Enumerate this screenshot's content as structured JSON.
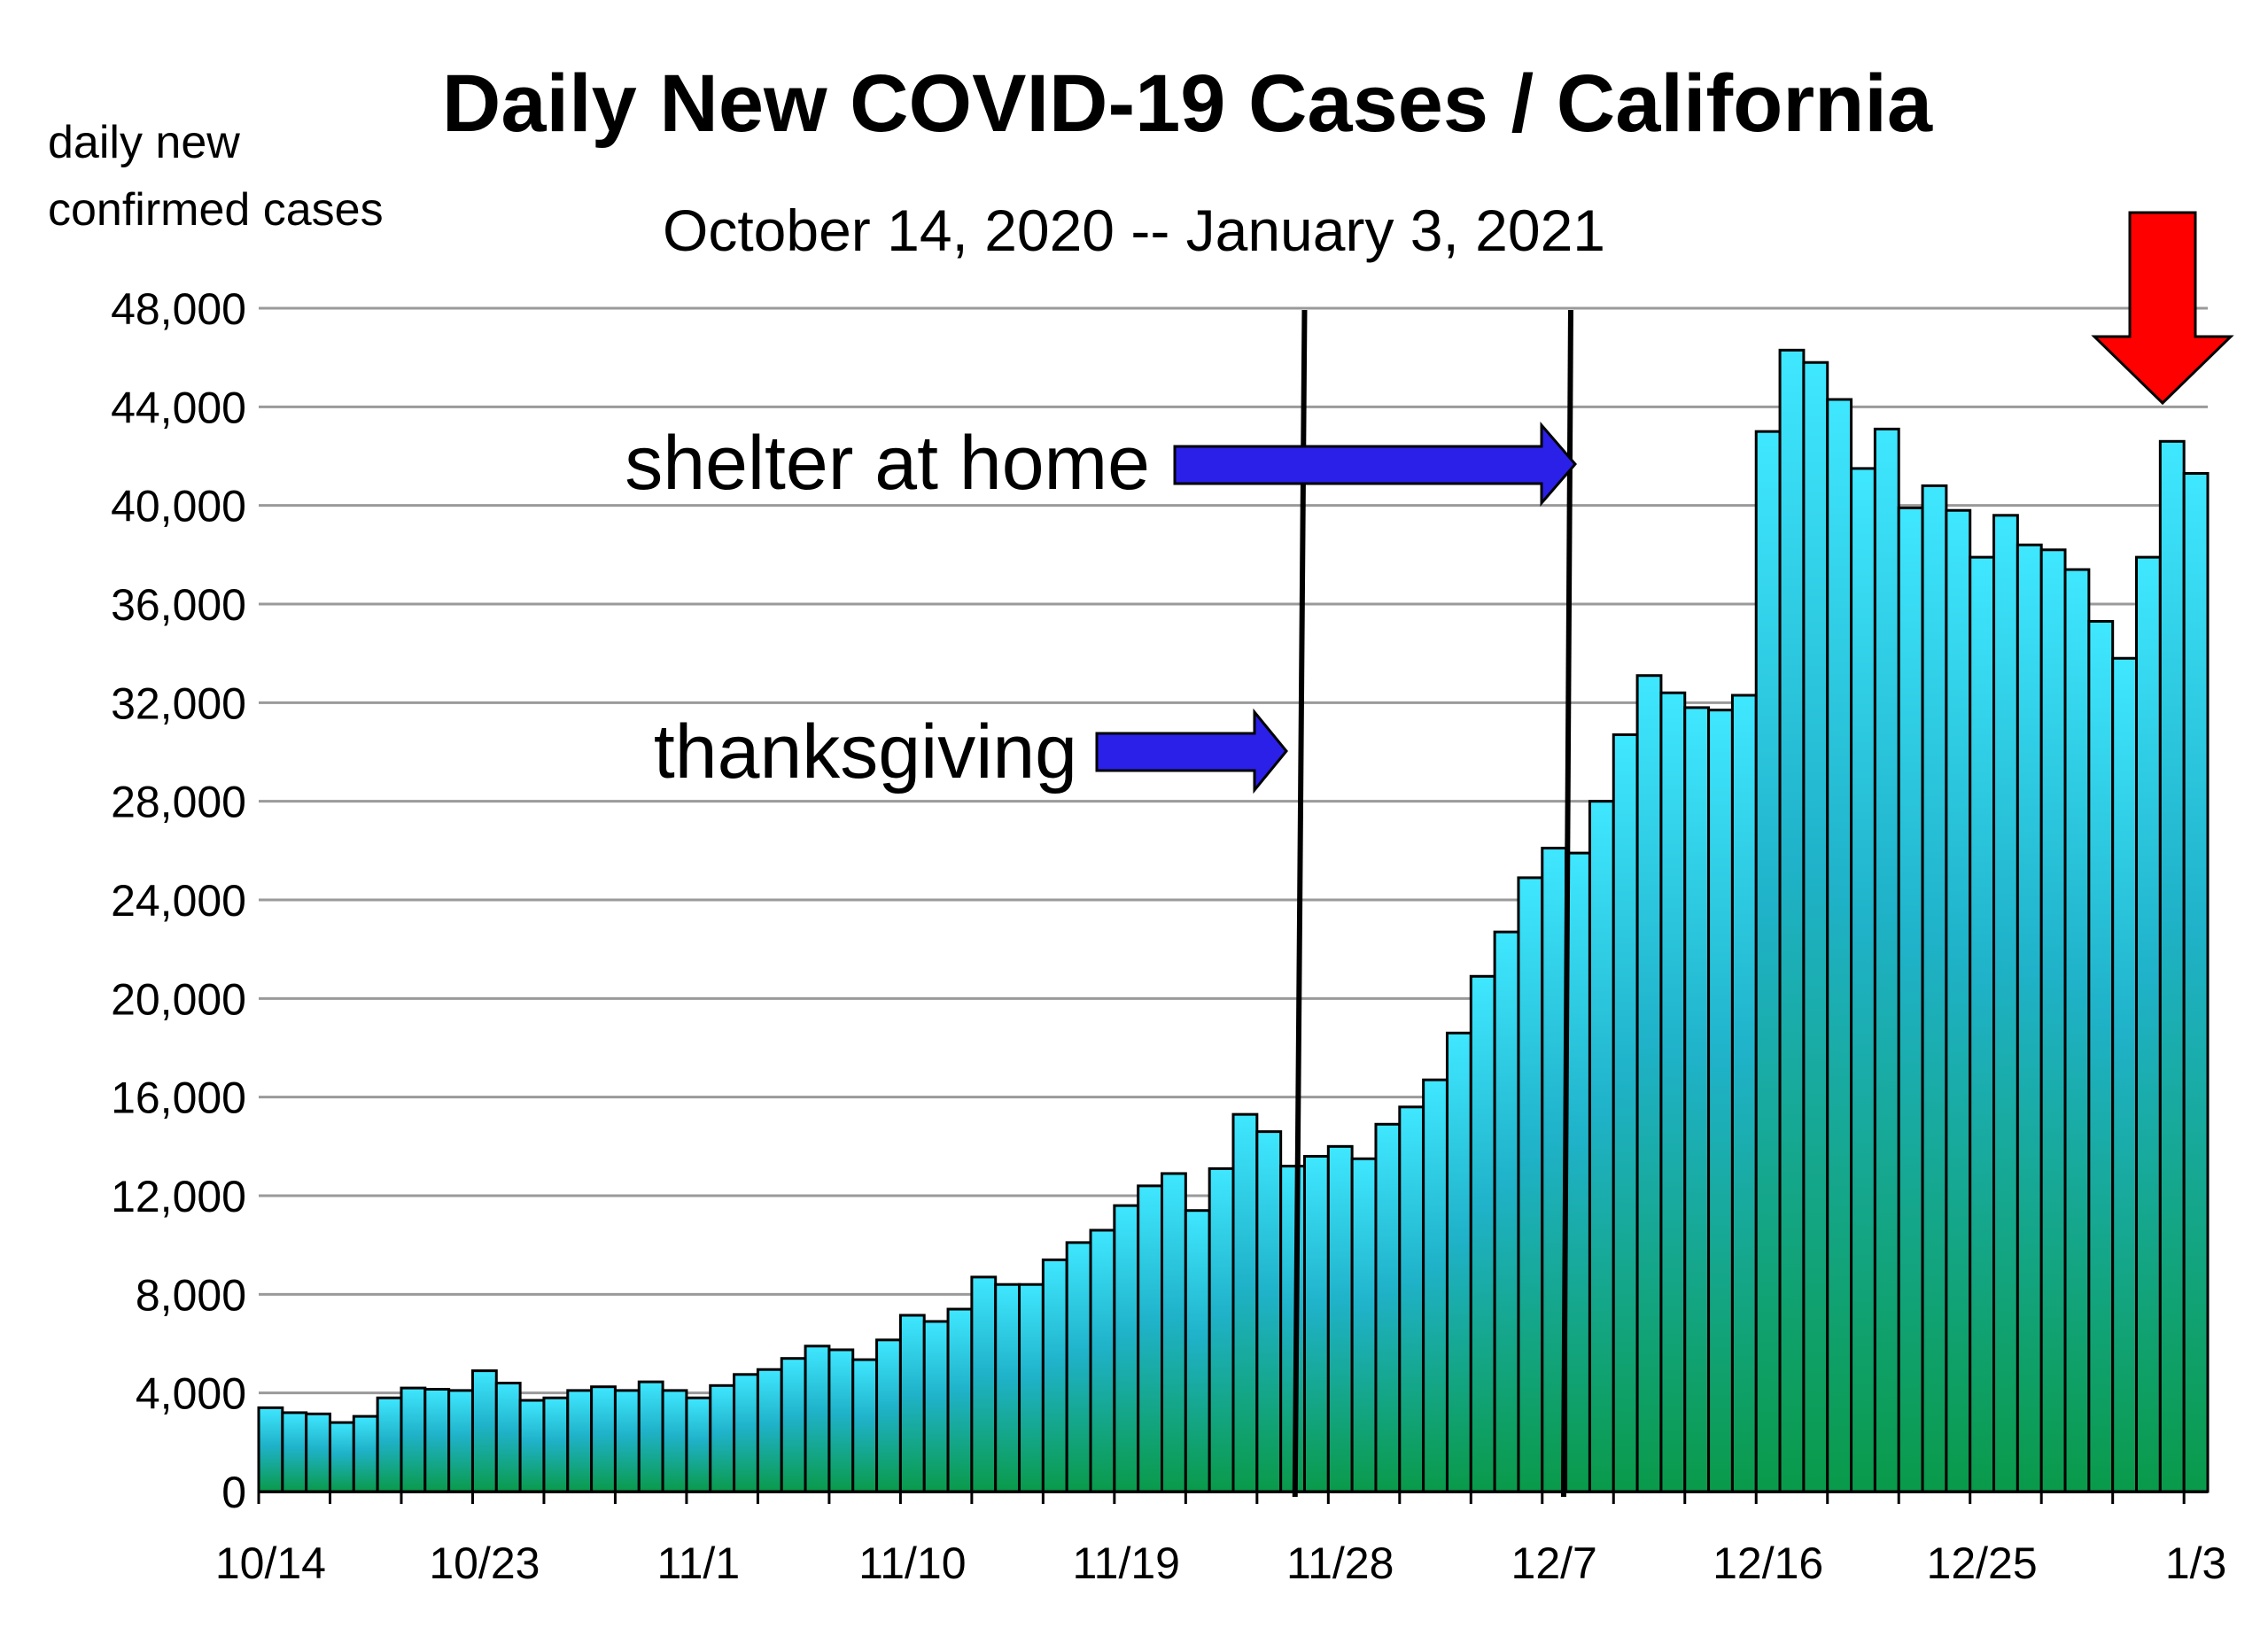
{
  "chart_data": {
    "type": "bar",
    "title": "Daily New COVID-19 Cases / California",
    "subtitle": "October 14, 2020 -- January 3, 2021",
    "ylabel_lines": [
      "daily new",
      "confirmed  cases"
    ],
    "ylim": [
      0,
      48000
    ],
    "yticks": [
      "0",
      "4,000",
      "8,000",
      "12,000",
      "16,000",
      "20,000",
      "24,000",
      "28,000",
      "32,000",
      "36,000",
      "40,000",
      "44,000",
      "48,000"
    ],
    "xtick_labels": [
      "10/14",
      "10/23",
      "11/1",
      "11/10",
      "11/19",
      "11/28",
      "12/7",
      "12/16",
      "12/25",
      "1/3"
    ],
    "grid": true,
    "categories": [
      "10/14",
      "10/15",
      "10/16",
      "10/17",
      "10/18",
      "10/19",
      "10/20",
      "10/21",
      "10/22",
      "10/23",
      "10/24",
      "10/25",
      "10/26",
      "10/27",
      "10/28",
      "10/29",
      "10/30",
      "10/31",
      "11/1",
      "11/2",
      "11/3",
      "11/4",
      "11/5",
      "11/6",
      "11/7",
      "11/8",
      "11/9",
      "11/10",
      "11/11",
      "11/12",
      "11/13",
      "11/14",
      "11/15",
      "11/16",
      "11/17",
      "11/18",
      "11/19",
      "11/20",
      "11/21",
      "11/22",
      "11/23",
      "11/24",
      "11/25",
      "11/26",
      "11/27",
      "11/28",
      "11/29",
      "11/30",
      "12/1",
      "12/2",
      "12/3",
      "12/4",
      "12/5",
      "12/6",
      "12/7",
      "12/8",
      "12/9",
      "12/10",
      "12/11",
      "12/12",
      "12/13",
      "12/14",
      "12/15",
      "12/16",
      "12/17",
      "12/18",
      "12/19",
      "12/20",
      "12/21",
      "12/22",
      "12/23",
      "12/24",
      "12/25",
      "12/26",
      "12/27",
      "12/28",
      "12/29",
      "12/30",
      "12/31",
      "1/1",
      "1/2",
      "1/3"
    ],
    "values": [
      3400,
      3200,
      3150,
      2800,
      3050,
      3800,
      4200,
      4150,
      4100,
      4900,
      4400,
      3700,
      3800,
      4100,
      4250,
      4100,
      4450,
      4100,
      3800,
      4300,
      4750,
      4950,
      5400,
      5900,
      5750,
      5350,
      6150,
      7150,
      6900,
      7400,
      8700,
      8400,
      8400,
      9400,
      10100,
      10600,
      11600,
      12400,
      12900,
      11400,
      13100,
      15300,
      14600,
      13200,
      13600,
      14000,
      13500,
      14900,
      15600,
      16700,
      18600,
      20900,
      22700,
      24900,
      26100,
      25900,
      28000,
      30700,
      33100,
      32400,
      31800,
      31700,
      32300,
      43000,
      46300,
      45800,
      44300,
      41500,
      43100,
      39900,
      40800,
      39800,
      37900,
      39600,
      38400,
      38200,
      37400,
      35300,
      33800,
      37900,
      42600,
      41300
    ],
    "annotations": [
      {
        "text": "shelter at home",
        "marks_date": "12/7"
      },
      {
        "text": "thanksgiving",
        "marks_date": "11/26"
      }
    ],
    "colors": {
      "bar_top": "#3fe7ff",
      "bar_mid": "#1fb2c9",
      "bar_bottom": "#0a9a4a",
      "annotation_arrow": "#2b20e8",
      "highlight_arrow": "#ff0000",
      "grid": "#9a9a9a"
    }
  }
}
